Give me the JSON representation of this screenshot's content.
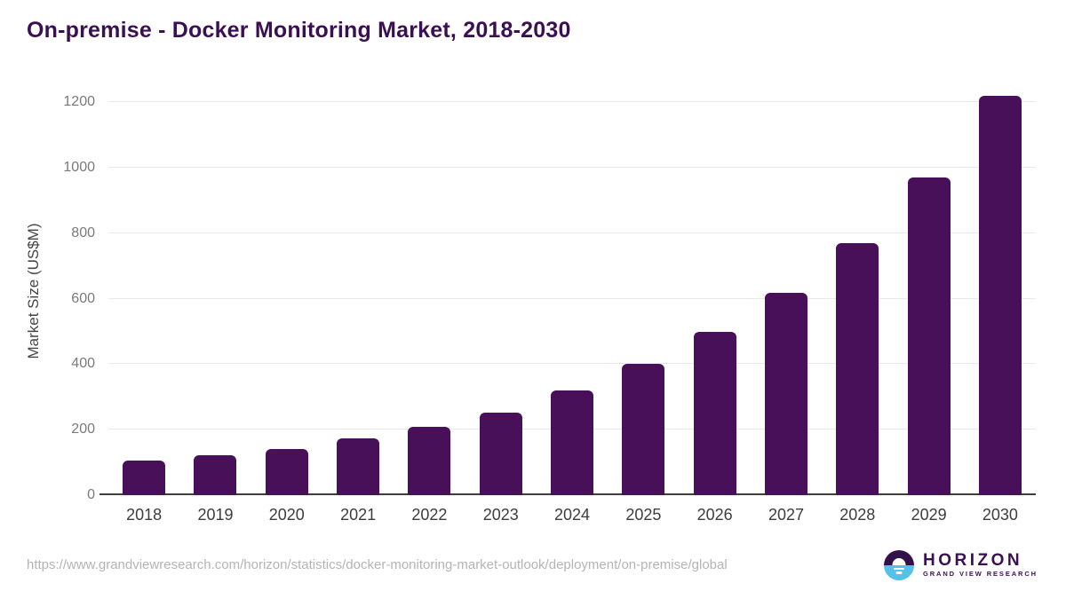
{
  "title": "On-premise - Docker Monitoring Market, 2018-2030",
  "chart_data": {
    "type": "bar",
    "title": "On-premise - Docker Monitoring Market, 2018-2030",
    "categories": [
      "2018",
      "2019",
      "2020",
      "2021",
      "2022",
      "2023",
      "2024",
      "2025",
      "2026",
      "2027",
      "2028",
      "2029",
      "2030"
    ],
    "values": [
      107,
      123,
      142,
      174,
      209,
      252,
      321,
      400,
      498,
      617,
      770,
      970,
      1220
    ],
    "xlabel": "",
    "ylabel": "Market Size (US$M)",
    "ylim": [
      0,
      1280
    ],
    "yticks": [
      0,
      200,
      400,
      600,
      800,
      1000,
      1200
    ],
    "grid": "horizontal-only",
    "legend": "none",
    "bar_color": "#471059"
  },
  "colors": {
    "title": "#3b1053",
    "bar": "#471059",
    "gridline": "#e9e9e9",
    "axis_line": "#3f3f3f",
    "y_tick_label": "#7a7a7a",
    "x_tick_label": "#3d3d3d",
    "url_text": "#b4b4b4",
    "logo_purple": "#32104a",
    "logo_cyan": "#56c1e8"
  },
  "footer": {
    "source_url": "https://www.grandviewresearch.com/horizon/statistics/docker-monitoring-market-outlook/deployment/on-premise/global",
    "logo": {
      "icon": "horizon-sun-icon",
      "brand": "HORIZON",
      "subtext": "GRAND VIEW RESEARCH"
    }
  }
}
